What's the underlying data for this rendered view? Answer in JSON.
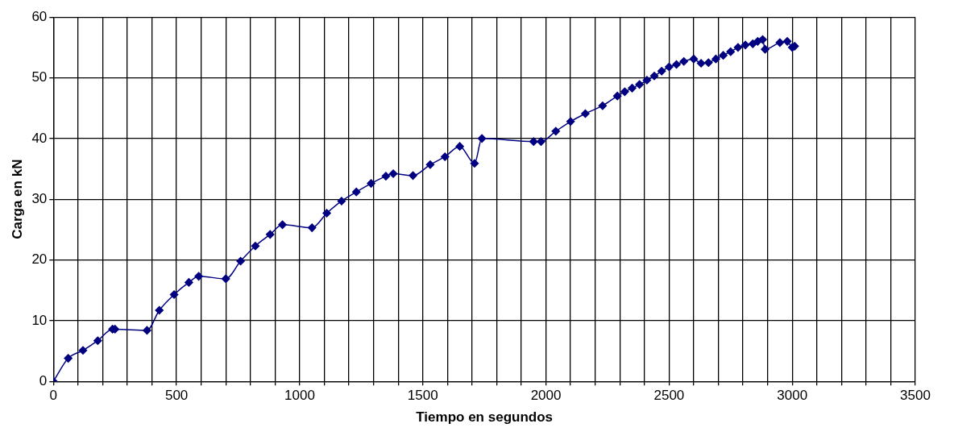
{
  "chart_data": {
    "type": "line",
    "xlabel": "Tiempo en segundos",
    "ylabel": "Carga en kN",
    "x": [
      0,
      60,
      120,
      180,
      240,
      250,
      380,
      430,
      490,
      550,
      590,
      700,
      760,
      820,
      880,
      930,
      1050,
      1110,
      1170,
      1230,
      1290,
      1350,
      1380,
      1460,
      1530,
      1590,
      1650,
      1710,
      1740,
      1950,
      1980,
      2040,
      2100,
      2160,
      2230,
      2290,
      2320,
      2350,
      2380,
      2410,
      2440,
      2470,
      2500,
      2530,
      2560,
      2600,
      2630,
      2660,
      2690,
      2720,
      2750,
      2780,
      2810,
      2840,
      2860,
      2880,
      2890,
      2950,
      2980,
      3000,
      3010
    ],
    "series": [
      {
        "color": "#000080",
        "values": [
          0,
          3.8,
          5.1,
          6.7,
          8.6,
          8.6,
          8.4,
          11.7,
          14.3,
          16.3,
          17.3,
          16.9,
          19.8,
          22.3,
          24.2,
          25.8,
          25.3,
          27.7,
          29.7,
          31.2,
          32.6,
          33.8,
          34.2,
          33.9,
          35.7,
          37.0,
          38.7,
          35.9,
          40.0,
          39.5,
          39.5,
          41.2,
          42.8,
          44.1,
          45.4,
          47.0,
          47.7,
          48.3,
          48.9,
          49.6,
          50.3,
          51.1,
          51.8,
          52.2,
          52.7,
          53.1,
          52.4,
          52.5,
          53.1,
          53.7,
          54.3,
          55.0,
          55.4,
          55.6,
          56.0,
          56.3,
          54.7,
          55.8,
          56.0,
          55.0,
          55.2
        ]
      }
    ],
    "xlim": [
      0,
      3500
    ],
    "xticks": [
      0,
      {
        "value": 100,
        "label": null
      },
      {
        "value": 200,
        "label": null
      },
      {
        "value": 300,
        "label": null
      },
      {
        "value": 400,
        "label": null
      },
      500,
      {
        "value": 600,
        "label": null
      },
      {
        "value": 700,
        "label": null
      },
      {
        "value": 800,
        "label": null
      },
      {
        "value": 900,
        "label": null
      },
      1000,
      {
        "value": 1100,
        "label": null
      },
      {
        "value": 1200,
        "label": null
      },
      {
        "value": 1300,
        "label": null
      },
      {
        "value": 1400,
        "label": null
      },
      1500,
      {
        "value": 1600,
        "label": null
      },
      {
        "value": 1700,
        "label": null
      },
      {
        "value": 1800,
        "label": null
      },
      {
        "value": 1900,
        "label": null
      },
      2000,
      {
        "value": 2100,
        "label": null
      },
      {
        "value": 2200,
        "label": null
      },
      {
        "value": 2300,
        "label": null
      },
      {
        "value": 2400,
        "label": null
      },
      2500,
      {
        "value": 2600,
        "label": null
      },
      {
        "value": 2700,
        "label": null
      },
      {
        "value": 2800,
        "label": null
      },
      {
        "value": 2900,
        "label": null
      },
      3000,
      {
        "value": 3100,
        "label": null
      },
      {
        "value": 3200,
        "label": null
      },
      {
        "value": 3300,
        "label": null
      },
      {
        "value": 3400,
        "label": null
      },
      3500
    ],
    "ylim": [
      0,
      60
    ],
    "yticks": [
      0,
      10,
      20,
      30,
      40,
      50,
      60
    ],
    "grid": true,
    "legend": false,
    "marker": "diamond",
    "line_style": "solid"
  }
}
